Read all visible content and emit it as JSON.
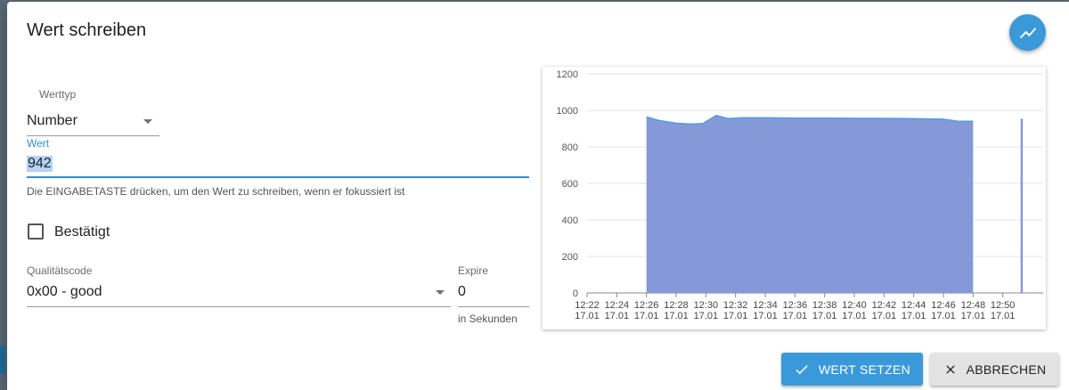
{
  "dialog": {
    "title": "Wert schreiben",
    "history_button_icon": "trend-chart-icon"
  },
  "form": {
    "type_label": "Werttyp",
    "type_value": "Number",
    "value_label": "Wert",
    "value": "942",
    "value_helper": "Die EINGABETASTE drücken, um den Wert zu schreiben, wenn er fokussiert ist",
    "ack_label": "Bestätigt",
    "ack_checked": false,
    "quality_label": "Qualitätscode",
    "quality_value": "0x00 - good",
    "expire_label": "Expire",
    "expire_value": "0",
    "expire_helper": "in Sekunden"
  },
  "buttons": {
    "set_label": "WERT SETZEN",
    "set_icon": "check-icon",
    "cancel_label": "ABBRECHEN",
    "cancel_icon": "close-icon"
  },
  "colors": {
    "accent": "#3a9ad9",
    "area_fill": "#8599d8",
    "area_line": "#4f9be6"
  },
  "chart_data": {
    "type": "area",
    "ylim": [
      0,
      1200
    ],
    "yticks": [
      0,
      200,
      400,
      600,
      800,
      1000,
      1200
    ],
    "xlim": [
      0,
      30
    ],
    "xticks": [
      {
        "x": 0,
        "time": "12:22",
        "date": "17.01"
      },
      {
        "x": 2,
        "time": "12:24",
        "date": "17.01"
      },
      {
        "x": 4,
        "time": "12:26",
        "date": "17.01"
      },
      {
        "x": 6,
        "time": "12:28",
        "date": "17.01"
      },
      {
        "x": 8,
        "time": "12:30",
        "date": "17.01"
      },
      {
        "x": 10,
        "time": "12:32",
        "date": "17.01"
      },
      {
        "x": 12,
        "time": "12:34",
        "date": "17.01"
      },
      {
        "x": 14,
        "time": "12:36",
        "date": "17.01"
      },
      {
        "x": 16,
        "time": "12:38",
        "date": "17.01"
      },
      {
        "x": 18,
        "time": "12:40",
        "date": "17.01"
      },
      {
        "x": 20,
        "time": "12:42",
        "date": "17.01"
      },
      {
        "x": 22,
        "time": "12:44",
        "date": "17.01"
      },
      {
        "x": 24,
        "time": "12:46",
        "date": "17.01"
      },
      {
        "x": 26,
        "time": "12:48",
        "date": "17.01"
      },
      {
        "x": 28,
        "time": "12:50",
        "date": "17.01"
      }
    ],
    "segments": [
      {
        "points": [
          [
            4.0,
            965
          ],
          [
            4.8,
            945
          ],
          [
            6.0,
            930
          ],
          [
            6.9,
            925
          ],
          [
            7.8,
            928
          ],
          [
            8.7,
            972
          ],
          [
            9.5,
            955
          ],
          [
            10.5,
            960
          ],
          [
            12,
            960
          ],
          [
            14,
            958
          ],
          [
            16,
            958
          ],
          [
            18,
            957
          ],
          [
            20,
            956
          ],
          [
            22,
            955
          ],
          [
            24,
            952
          ],
          [
            25.0,
            940
          ],
          [
            26.0,
            940
          ]
        ]
      },
      {
        "points": [
          [
            29.2,
            950
          ],
          [
            29.35,
            950
          ]
        ]
      }
    ],
    "grid": true
  }
}
